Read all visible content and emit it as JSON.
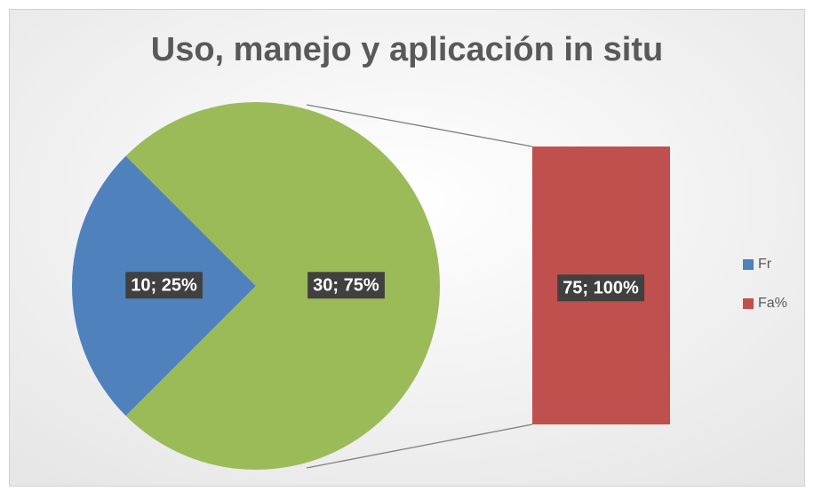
{
  "chart_data": {
    "type": "bar-of-pie",
    "title": "Uso, manejo y aplicación in situ",
    "categories": [
      "Fr",
      null,
      "Fa%"
    ],
    "values": [
      10,
      30,
      75
    ],
    "value_labels": [
      "10; 25%",
      "30; 75%",
      "75; 100%"
    ],
    "colors": [
      "#4f81bd",
      "#9bbb59",
      "#c0504d"
    ],
    "legend": "right"
  }
}
